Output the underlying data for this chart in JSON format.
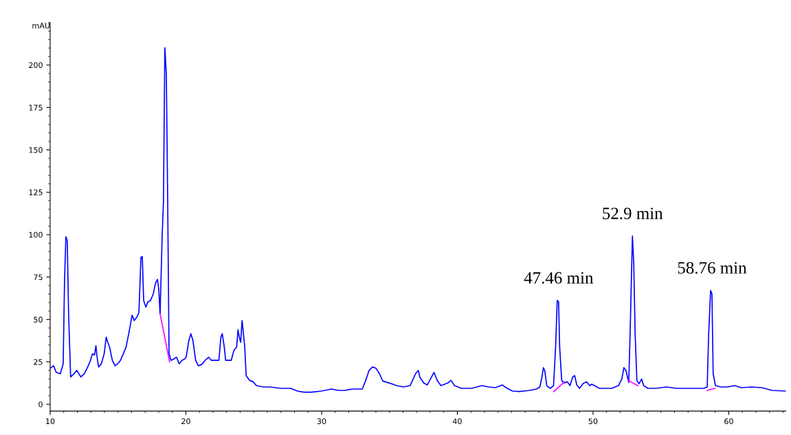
{
  "chart_data": {
    "type": "line",
    "ylabel": "mAU",
    "xlim": [
      10,
      64.2
    ],
    "ylim": [
      -4,
      225
    ],
    "xticks": [
      10,
      20,
      30,
      40,
      50,
      60
    ],
    "yticks": [
      0,
      25,
      50,
      75,
      100,
      125,
      150,
      175,
      200
    ],
    "grid": false,
    "legend": false,
    "marker": "none",
    "line_style": "solid",
    "annotations": [
      {
        "text": "47.46 min",
        "x": 47.46,
        "y": 61.2
      },
      {
        "text": "52.9 min",
        "x": 52.9,
        "y": 99.2
      },
      {
        "text": "58.76 min",
        "x": 58.76,
        "y": 67.1
      }
    ],
    "series": [
      {
        "color": "#0000ff",
        "x": [
          10.0,
          10.25,
          10.45,
          10.75,
          10.96,
          11.06,
          11.16,
          11.26,
          11.36,
          11.51,
          11.76,
          11.96,
          12.26,
          12.52,
          12.77,
          12.97,
          13.12,
          13.27,
          13.37,
          13.47,
          13.57,
          13.77,
          13.98,
          14.13,
          14.23,
          14.38,
          14.58,
          14.78,
          14.98,
          15.18,
          15.39,
          15.59,
          15.79,
          16.04,
          16.19,
          16.39,
          16.54,
          16.69,
          16.79,
          16.89,
          17.05,
          17.2,
          17.4,
          17.6,
          17.75,
          17.9,
          18.0,
          18.1,
          18.25,
          18.35,
          18.45,
          18.56,
          18.66,
          18.76,
          18.91,
          19.11,
          19.31,
          19.51,
          19.71,
          19.91,
          20.02,
          20.22,
          20.37,
          20.52,
          20.72,
          20.92,
          21.17,
          21.42,
          21.68,
          21.88,
          22.18,
          22.43,
          22.58,
          22.68,
          22.83,
          22.93,
          23.34,
          23.54,
          23.74,
          23.84,
          23.94,
          24.04,
          24.14,
          24.24,
          24.34,
          24.44,
          24.7,
          24.95,
          25.2,
          25.7,
          26.21,
          26.96,
          27.72,
          28.22,
          28.72,
          29.23,
          29.98,
          30.73,
          31.24,
          31.74,
          32.24,
          33.0,
          33.25,
          33.5,
          33.75,
          34.01,
          34.26,
          34.51,
          35.01,
          35.52,
          36.02,
          36.52,
          36.92,
          37.13,
          37.23,
          37.53,
          37.78,
          38.13,
          38.28,
          38.54,
          38.79,
          39.29,
          39.54,
          39.79,
          40.3,
          41.05,
          41.81,
          42.31,
          42.81,
          43.32,
          43.67,
          44.07,
          44.57,
          45.33,
          45.83,
          46.08,
          46.24,
          46.34,
          46.44,
          46.59,
          46.84,
          47.09,
          47.24,
          47.36,
          47.46,
          47.54,
          47.69,
          47.85,
          48.1,
          48.3,
          48.5,
          48.65,
          48.8,
          49.0,
          49.26,
          49.51,
          49.76,
          49.91,
          50.11,
          50.46,
          50.87,
          51.37,
          51.87,
          52.12,
          52.27,
          52.42,
          52.63,
          52.73,
          52.9,
          53.0,
          53.1,
          53.23,
          53.38,
          53.58,
          53.73,
          54.04,
          54.64,
          55.4,
          56.15,
          56.91,
          57.66,
          58.16,
          58.41,
          58.52,
          58.66,
          58.76,
          58.85,
          59.02,
          59.42,
          59.92,
          60.43,
          60.93,
          61.69,
          62.44,
          63.2,
          64.2
        ],
        "values": [
          21.2,
          22.7,
          18.8,
          18.0,
          23.9,
          72.9,
          98.8,
          96.5,
          53.3,
          16.1,
          18.0,
          20.0,
          16.1,
          18.0,
          22.0,
          25.9,
          29.8,
          29.0,
          34.5,
          27.1,
          22.0,
          23.9,
          29.8,
          39.6,
          36.9,
          33.7,
          25.9,
          22.7,
          23.9,
          25.9,
          29.8,
          33.7,
          41.6,
          52.5,
          49.4,
          51.4,
          54.1,
          86.7,
          87.1,
          61.2,
          57.3,
          60.4,
          61.2,
          65.1,
          71.0,
          73.7,
          68.2,
          53.3,
          98.4,
          120.0,
          210.2,
          194.5,
          120.0,
          29.8,
          25.9,
          26.7,
          27.8,
          23.9,
          25.9,
          26.7,
          27.8,
          37.6,
          41.6,
          37.6,
          25.9,
          22.7,
          23.5,
          25.9,
          27.8,
          25.9,
          25.9,
          25.9,
          39.6,
          41.6,
          33.7,
          25.9,
          25.9,
          31.8,
          33.7,
          43.9,
          39.6,
          36.5,
          49.4,
          41.6,
          33.7,
          16.9,
          14.1,
          13.3,
          11.0,
          10.2,
          10.2,
          9.4,
          9.4,
          7.8,
          7.1,
          7.1,
          7.8,
          9.0,
          8.2,
          8.2,
          9.0,
          9.0,
          14.1,
          20.0,
          22.0,
          21.2,
          18.0,
          13.7,
          12.5,
          11.0,
          10.2,
          11.0,
          18.0,
          20.0,
          16.1,
          12.5,
          11.4,
          16.5,
          18.8,
          13.7,
          11.0,
          12.5,
          14.1,
          11.0,
          9.4,
          9.4,
          11.0,
          10.2,
          9.8,
          11.4,
          9.4,
          7.8,
          7.5,
          8.2,
          9.0,
          10.2,
          16.1,
          21.6,
          20.0,
          11.0,
          9.4,
          11.0,
          33.7,
          61.2,
          60.4,
          33.7,
          14.1,
          12.5,
          13.3,
          11.0,
          16.1,
          16.9,
          11.4,
          9.4,
          12.1,
          13.3,
          11.0,
          11.8,
          11.0,
          9.4,
          9.4,
          9.4,
          11.0,
          14.9,
          21.6,
          20.0,
          12.9,
          41.6,
          99.2,
          82.7,
          41.6,
          14.1,
          12.1,
          14.9,
          11.0,
          9.4,
          9.4,
          10.2,
          9.4,
          9.4,
          9.4,
          9.4,
          10.2,
          41.6,
          67.1,
          65.1,
          18.0,
          11.0,
          10.2,
          10.2,
          11.0,
          9.8,
          10.2,
          9.8,
          8.2,
          7.8
        ]
      },
      {
        "color": "#ff00ff",
        "x": [
          18.1,
          18.8
        ],
        "values": [
          53.3,
          25.0
        ]
      },
      {
        "color": "#ff00ff",
        "x": [
          47.1,
          47.9
        ],
        "values": [
          7.5,
          13.3
        ]
      },
      {
        "color": "#ff00ff",
        "x": [
          52.6,
          53.3
        ],
        "values": [
          14.1,
          11.0
        ]
      },
      {
        "color": "#ff00ff",
        "x": [
          58.4,
          59.0
        ],
        "values": [
          8.2,
          9.4
        ]
      }
    ]
  }
}
